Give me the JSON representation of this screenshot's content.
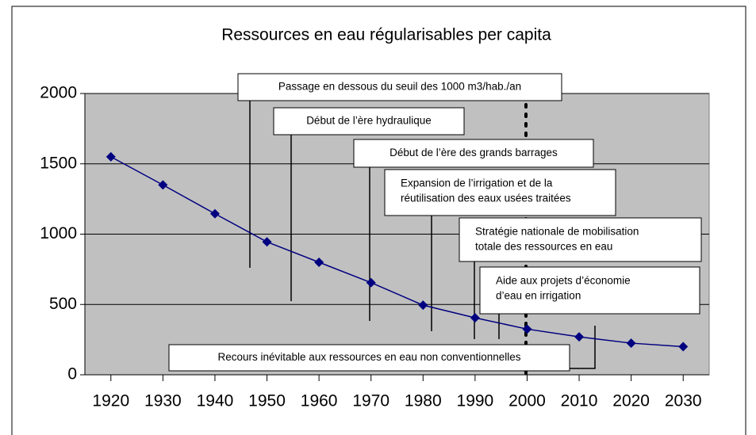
{
  "chart_data": {
    "type": "line",
    "title": "Ressources en eau régularisables per capita",
    "x": [
      1920,
      1930,
      1940,
      1950,
      1960,
      1970,
      1980,
      1990,
      2000,
      2010,
      2020,
      2030
    ],
    "series": [
      {
        "name": "Ressources en eau régularisables per capita",
        "color": "#000080",
        "values": [
          1550,
          1350,
          1145,
          945,
          800,
          655,
          495,
          405,
          325,
          270,
          225,
          200
        ]
      }
    ],
    "xlim": [
      1915,
      2035
    ],
    "xticks": [
      1920,
      1930,
      1940,
      1950,
      1960,
      1970,
      1980,
      1990,
      2000,
      2010,
      2020,
      2030
    ],
    "ylim": [
      0,
      2000
    ],
    "yticks": [
      0,
      500,
      1000,
      1500,
      2000
    ],
    "grid": true,
    "annotations": [
      [
        "Passage en dessous du seuil des 1000 m3/hab./an"
      ],
      [
        "Début de l’ère hydraulique"
      ],
      [
        "Début de l’ère des grands barrages"
      ],
      [
        "Expansion de l’irrigation et de la",
        "réutilisation des eaux usées traitées"
      ],
      [
        "Stratégie nationale de mobilisation",
        "totale des ressources en eau"
      ],
      [
        "Aide aux projets d’économie",
        "d’eau en irrigation"
      ],
      [
        "Recours inévitable aux ressources en eau non conventionnelles"
      ]
    ]
  }
}
